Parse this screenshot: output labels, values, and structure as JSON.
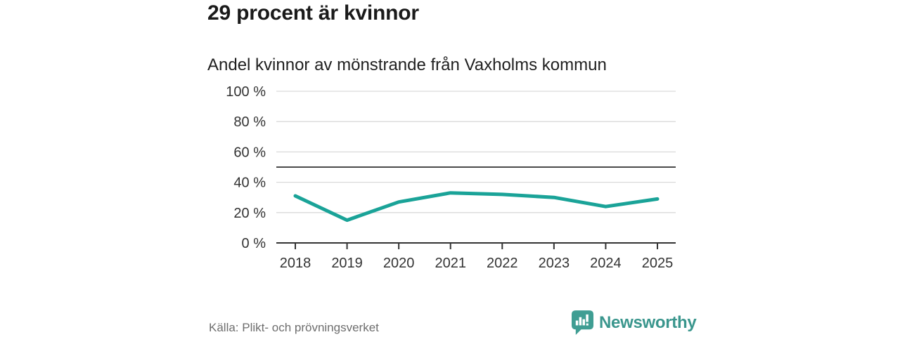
{
  "header": {
    "title": "29 procent är kvinnor",
    "subtitle": "Andel kvinnor av mönstrande från Vaxholms kommun"
  },
  "footer": {
    "source": "Källa: Plikt- och prövningsverket",
    "brand": "Newsworthy",
    "brand_icon": "bar-chart-speech-bubble-icon"
  },
  "colors": {
    "line": "#1aa398",
    "grid": "#d9d9d9",
    "axis": "#333333",
    "reference_line": "#4a4a4a",
    "tick_label": "#333333",
    "title": "#1a1a1a",
    "source_text": "#6e6e6e",
    "brand": "#3a968d"
  },
  "chart_data": {
    "type": "line",
    "title": "Andel kvinnor av mönstrande från Vaxholms kommun",
    "x": [
      "2018",
      "2019",
      "2020",
      "2021",
      "2022",
      "2023",
      "2024",
      "2025"
    ],
    "series": [
      {
        "name": "Andel kvinnor",
        "values": [
          31,
          15,
          27,
          33,
          32,
          30,
          24,
          29
        ]
      }
    ],
    "xlabel": "",
    "ylabel": "",
    "ylim": [
      0,
      100
    ],
    "yticks": [
      0,
      20,
      40,
      60,
      80,
      100
    ],
    "ytick_suffix": " %",
    "reference_line": 50,
    "grid": true,
    "legend": "none"
  }
}
